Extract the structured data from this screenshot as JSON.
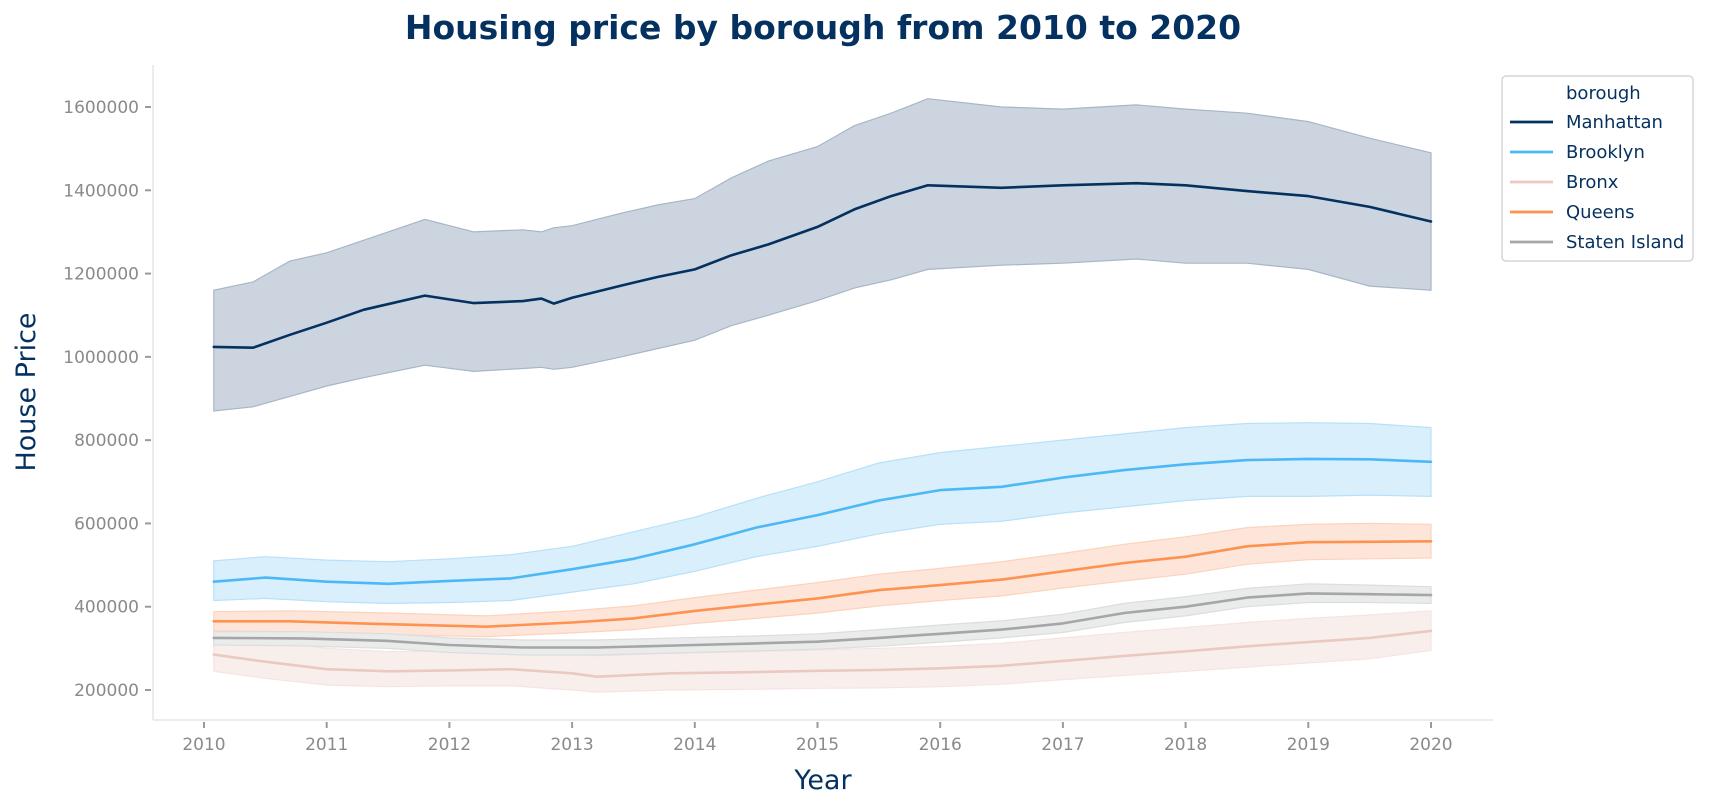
{
  "chart_data": {
    "type": "line",
    "title": "Housing price by borough from 2010 to 2020",
    "xlabel": "Year",
    "ylabel": "House Price",
    "xlim": [
      2009.6,
      2020.5
    ],
    "ylim": [
      130000,
      1700000
    ],
    "x_ticks": [
      2010,
      2011,
      2012,
      2013,
      2014,
      2015,
      2016,
      2017,
      2018,
      2019,
      2020
    ],
    "x_tick_labels": [
      "2010",
      "2011",
      "2012",
      "2013",
      "2014",
      "2015",
      "2016",
      "2017",
      "2018",
      "2019",
      "2020"
    ],
    "y_ticks": [
      200000,
      400000,
      600000,
      800000,
      1000000,
      1200000,
      1400000,
      1600000
    ],
    "y_tick_labels": [
      "200000",
      "400000",
      "600000",
      "800000",
      "1000000",
      "1200000",
      "1400000",
      "1600000"
    ],
    "grid": false,
    "legend": {
      "title": "borough",
      "placement": "top-right (outside)"
    },
    "series": [
      {
        "name": "Manhattan",
        "color": "#04315f",
        "band_color": "#ccd5df",
        "band_stroke": "#a7b6c6",
        "x": [
          2010.08,
          2010.4,
          2010.7,
          2011.0,
          2011.3,
          2011.8,
          2012.2,
          2012.6,
          2012.75,
          2012.85,
          2013.0,
          2013.4,
          2013.7,
          2014.0,
          2014.3,
          2014.6,
          2015.0,
          2015.3,
          2015.6,
          2015.9,
          2016.5,
          2017.0,
          2017.6,
          2018.0,
          2018.5,
          2019.0,
          2019.5,
          2020.0
        ],
        "values": [
          1024000,
          1022000,
          1053000,
          1082000,
          1113000,
          1147000,
          1129000,
          1134000,
          1140000,
          1128000,
          1142000,
          1171000,
          1192000,
          1210000,
          1244000,
          1270000,
          1312000,
          1354000,
          1386000,
          1412000,
          1406000,
          1412000,
          1417000,
          1412000,
          1398000,
          1386000,
          1360000,
          1325000
        ],
        "upper": [
          1160000,
          1180000,
          1230000,
          1250000,
          1280000,
          1330000,
          1300000,
          1305000,
          1300000,
          1310000,
          1315000,
          1345000,
          1365000,
          1380000,
          1430000,
          1470000,
          1505000,
          1555000,
          1585000,
          1620000,
          1600000,
          1595000,
          1605000,
          1595000,
          1585000,
          1565000,
          1525000,
          1490000
        ],
        "lower": [
          870000,
          880000,
          905000,
          930000,
          950000,
          980000,
          965000,
          972000,
          975000,
          970000,
          975000,
          1000000,
          1020000,
          1040000,
          1075000,
          1100000,
          1135000,
          1165000,
          1185000,
          1210000,
          1220000,
          1225000,
          1235000,
          1225000,
          1225000,
          1210000,
          1170000,
          1160000
        ]
      },
      {
        "name": "Brooklyn",
        "color": "#4cb8f5",
        "band_color": "#daeffc",
        "band_stroke": "#b8e0f9",
        "x": [
          2010.08,
          2010.5,
          2011.0,
          2011.5,
          2012.0,
          2012.5,
          2013.0,
          2013.5,
          2014.0,
          2014.5,
          2015.0,
          2015.5,
          2016.0,
          2016.5,
          2017.0,
          2017.5,
          2018.0,
          2018.5,
          2019.0,
          2019.5,
          2020.0
        ],
        "values": [
          460000,
          470000,
          460000,
          455000,
          462000,
          468000,
          490000,
          515000,
          550000,
          590000,
          620000,
          655000,
          680000,
          688000,
          710000,
          728000,
          742000,
          752000,
          755000,
          754000,
          748000
        ],
        "upper": [
          510000,
          520000,
          512000,
          508000,
          515000,
          525000,
          545000,
          580000,
          615000,
          660000,
          700000,
          745000,
          770000,
          785000,
          800000,
          815000,
          830000,
          840000,
          842000,
          840000,
          830000
        ],
        "lower": [
          415000,
          420000,
          412000,
          408000,
          410000,
          415000,
          435000,
          455000,
          485000,
          520000,
          545000,
          575000,
          598000,
          605000,
          625000,
          640000,
          655000,
          665000,
          665000,
          668000,
          665000
        ]
      },
      {
        "name": "Bronx",
        "color": "#ebc9c1",
        "band_color": "#f8efed",
        "band_stroke": "#f5e4e0",
        "x": [
          2010.08,
          2010.5,
          2011.0,
          2011.5,
          2012.0,
          2012.5,
          2013.0,
          2013.2,
          2013.8,
          2014.5,
          2015.0,
          2015.5,
          2016.0,
          2016.5,
          2017.0,
          2017.5,
          2018.0,
          2018.5,
          2019.0,
          2019.5,
          2020.0
        ],
        "values": [
          285000,
          268000,
          250000,
          245000,
          247000,
          250000,
          240000,
          232000,
          240000,
          243000,
          246000,
          248000,
          252000,
          258000,
          270000,
          282000,
          293000,
          305000,
          315000,
          325000,
          342000
        ],
        "upper": [
          335000,
          320000,
          300000,
          292000,
          293000,
          298000,
          290000,
          282000,
          288000,
          292000,
          296000,
          300000,
          305000,
          312000,
          325000,
          338000,
          350000,
          362000,
          372000,
          380000,
          390000
        ],
        "lower": [
          245000,
          228000,
          212000,
          208000,
          210000,
          210000,
          200000,
          195000,
          200000,
          202000,
          204000,
          205000,
          208000,
          214000,
          225000,
          235000,
          245000,
          255000,
          265000,
          275000,
          295000
        ]
      },
      {
        "name": "Queens",
        "color": "#fd9251",
        "band_color": "#fde5d9",
        "band_stroke": "#fcd3bd",
        "x": [
          2010.08,
          2010.7,
          2011.5,
          2012.3,
          2013.0,
          2013.5,
          2014.0,
          2014.5,
          2015.0,
          2015.5,
          2016.0,
          2016.5,
          2017.0,
          2017.5,
          2018.0,
          2018.5,
          2019.0,
          2019.5,
          2020.0
        ],
        "values": [
          365000,
          365000,
          358000,
          352000,
          362000,
          372000,
          390000,
          405000,
          420000,
          440000,
          452000,
          465000,
          485000,
          505000,
          520000,
          545000,
          555000,
          556000,
          557000
        ],
        "upper": [
          388000,
          390000,
          385000,
          378000,
          390000,
          402000,
          422000,
          440000,
          458000,
          478000,
          492000,
          508000,
          528000,
          550000,
          568000,
          590000,
          598000,
          600000,
          598000
        ],
        "lower": [
          342000,
          340000,
          333000,
          328000,
          337000,
          345000,
          360000,
          372000,
          385000,
          402000,
          415000,
          426000,
          445000,
          462000,
          478000,
          502000,
          513000,
          515000,
          517000
        ]
      },
      {
        "name": "Staten Island",
        "color": "#a6a6a6",
        "band_color": "#eaebeb",
        "band_stroke": "#dcdddd",
        "x": [
          2010.08,
          2010.8,
          2011.5,
          2012.0,
          2012.6,
          2013.2,
          2014.0,
          2014.5,
          2015.0,
          2015.5,
          2016.0,
          2016.5,
          2017.0,
          2017.5,
          2018.0,
          2018.5,
          2019.0,
          2019.5,
          2020.0
        ],
        "values": [
          325000,
          324000,
          318000,
          308000,
          302000,
          302000,
          308000,
          312000,
          316000,
          325000,
          335000,
          345000,
          360000,
          385000,
          400000,
          422000,
          432000,
          430000,
          428000
        ],
        "upper": [
          340000,
          340000,
          335000,
          325000,
          320000,
          320000,
          326000,
          330000,
          335000,
          345000,
          356000,
          366000,
          382000,
          408000,
          424000,
          444000,
          455000,
          452000,
          448000
        ],
        "lower": [
          308000,
          306000,
          300000,
          290000,
          284000,
          284000,
          290000,
          294000,
          298000,
          305000,
          315000,
          325000,
          338000,
          362000,
          378000,
          400000,
          410000,
          410000,
          408000
        ]
      }
    ]
  }
}
